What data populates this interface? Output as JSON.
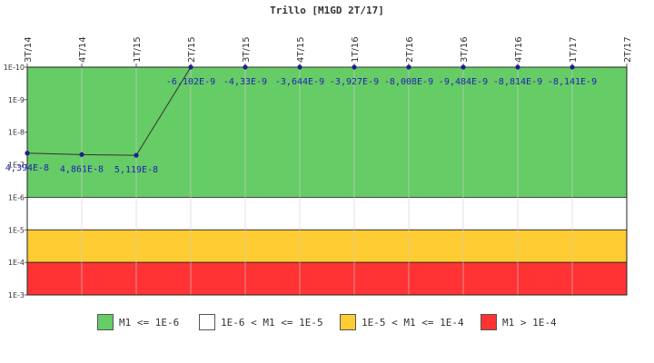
{
  "chart_data": {
    "type": "line",
    "title": "Trillo [M1GD 2T/17]",
    "x": [
      "3T/14",
      "4T/14",
      "1T/15",
      "2T/15",
      "3T/15",
      "4T/15",
      "1T/16",
      "2T/16",
      "3T/16",
      "4T/16",
      "1T/17",
      "2T/17"
    ],
    "y_axis": {
      "scale": "log",
      "reversed": true,
      "ticks": [
        "1E-10",
        "1E-9",
        "1E-8",
        "1E-7",
        "1E-6",
        "1E-5",
        "1E-4",
        "1E-3"
      ],
      "range": [
        1e-10,
        0.001
      ]
    },
    "series": [
      {
        "values": [
          4.394e-08,
          4.861e-08,
          5.119e-08,
          -6.102e-09,
          -4.33e-09,
          -3.644e-09,
          -3.927e-09,
          -8.008e-09,
          -9.484e-09,
          -8.814e-09,
          -8.141e-09,
          null
        ],
        "labels": [
          "4,394E-8",
          "4,861E-8",
          "5,119E-8",
          "-6,102E-9",
          "-4,33E-9",
          "-3,644E-9",
          "-3,927E-9",
          "-8,008E-9",
          "-9,484E-9",
          "-8,814E-9",
          "-8,141E-9",
          ""
        ],
        "color": "#1f1f8f"
      }
    ],
    "bands": [
      {
        "from": 1e-10,
        "to": 1e-06,
        "color": "#66cc66"
      },
      {
        "from": 1e-06,
        "to": 1e-05,
        "color": "#ffffff"
      },
      {
        "from": 1e-05,
        "to": 0.0001,
        "color": "#ffcc33"
      },
      {
        "from": 0.0001,
        "to": 0.001,
        "color": "#ff3333"
      }
    ],
    "legend": {
      "position": "bottom",
      "items": [
        {
          "label": "M1 <= 1E-6",
          "color": "#66cc66"
        },
        {
          "label": "1E-6 < M1 <= 1E-5",
          "color": "#ffffff"
        },
        {
          "label": "1E-5 < M1 <= 1E-4",
          "color": "#ffcc33"
        },
        {
          "label": "M1 > 1E-4",
          "color": "#ff3333"
        }
      ]
    }
  }
}
